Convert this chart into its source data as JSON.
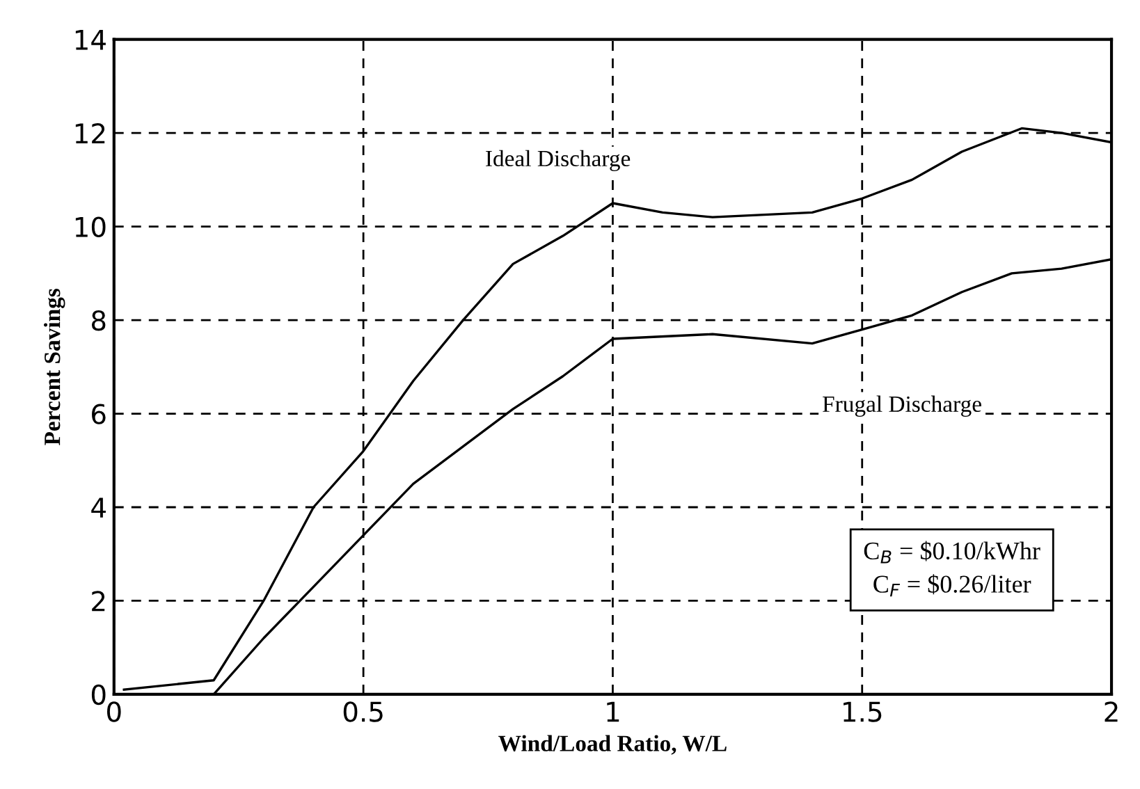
{
  "chart_data": {
    "type": "line",
    "xlabel": "Wind/Load Ratio, W/L",
    "ylabel": "Percent Savings",
    "xlim": [
      0,
      2
    ],
    "ylim": [
      0,
      14
    ],
    "xticks": [
      0,
      0.5,
      1,
      1.5,
      2
    ],
    "yticks": [
      0,
      2,
      4,
      6,
      8,
      10,
      12,
      14
    ],
    "grid": true,
    "line_style": "solid",
    "series": [
      {
        "name": "Ideal Discharge",
        "color": "#000000",
        "x": [
          0.02,
          0.2,
          0.3,
          0.4,
          0.5,
          0.6,
          0.7,
          0.8,
          0.9,
          1.0,
          1.1,
          1.2,
          1.4,
          1.5,
          1.6,
          1.7,
          1.82,
          1.9,
          2.0
        ],
        "values": [
          0.1,
          0.3,
          2.0,
          4.0,
          5.2,
          6.7,
          8.0,
          9.2,
          9.8,
          10.5,
          10.3,
          10.2,
          10.3,
          10.6,
          11.0,
          11.6,
          12.1,
          12.0,
          11.8
        ]
      },
      {
        "name": "Frugal Discharge",
        "color": "#000000",
        "x": [
          0.2,
          0.3,
          0.4,
          0.5,
          0.6,
          0.7,
          0.8,
          0.9,
          1.0,
          1.2,
          1.4,
          1.5,
          1.6,
          1.7,
          1.8,
          1.9,
          2.0
        ],
        "values": [
          0.0,
          1.2,
          2.3,
          3.4,
          4.5,
          5.3,
          6.1,
          6.8,
          7.6,
          7.7,
          7.5,
          7.8,
          8.1,
          8.6,
          9.0,
          9.1,
          9.3
        ]
      }
    ],
    "annotations": [
      "C$_{B}$ = $0.10/kWhr",
      "C$_{F}$ = $0.26/liter"
    ]
  }
}
